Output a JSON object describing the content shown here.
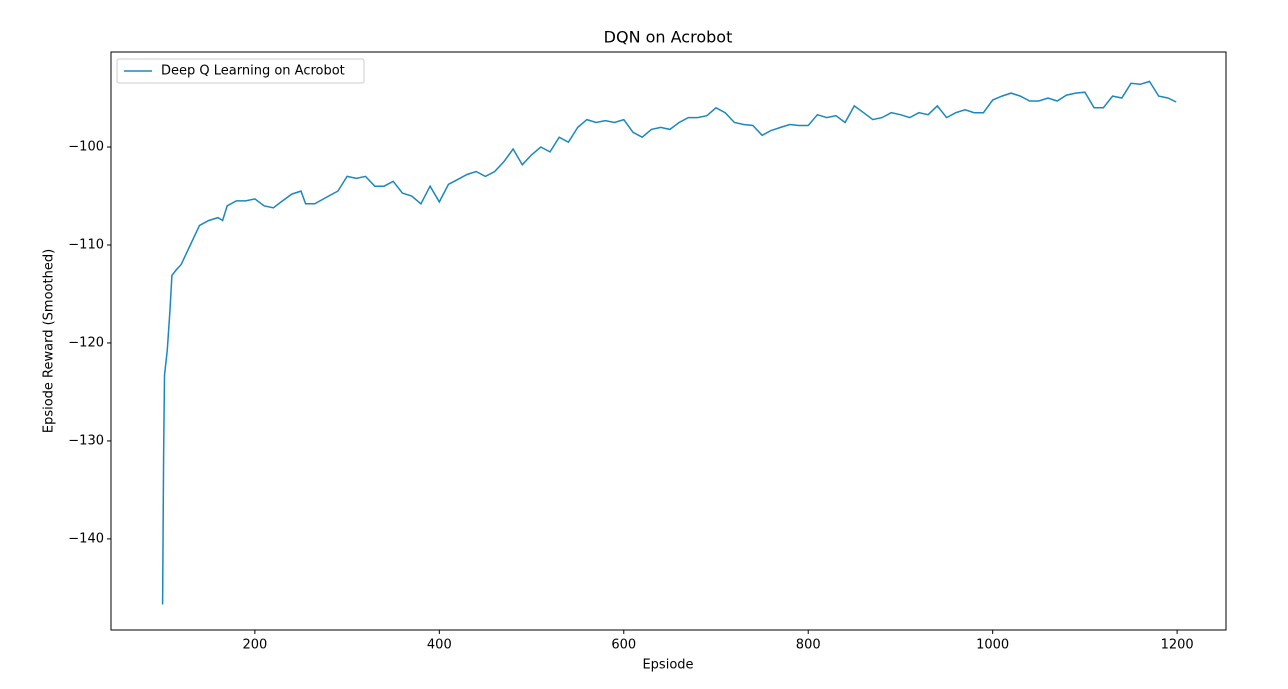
{
  "chart_data": {
    "type": "line",
    "title": "DQN on Acrobot",
    "x_label": "Epsiode",
    "y_label": "Epsiode Reward (Smoothed)",
    "x": [
      100,
      101,
      102,
      105,
      108,
      110,
      115,
      120,
      125,
      130,
      135,
      140,
      150,
      160,
      165,
      170,
      180,
      190,
      200,
      210,
      220,
      230,
      240,
      250,
      255,
      265,
      280,
      290,
      300,
      310,
      320,
      330,
      340,
      350,
      360,
      370,
      380,
      390,
      400,
      410,
      420,
      430,
      440,
      450,
      460,
      470,
      480,
      490,
      500,
      510,
      520,
      530,
      540,
      550,
      560,
      570,
      580,
      590,
      600,
      610,
      620,
      630,
      640,
      650,
      660,
      670,
      680,
      690,
      700,
      710,
      720,
      730,
      740,
      750,
      760,
      770,
      780,
      790,
      800,
      810,
      820,
      830,
      840,
      850,
      860,
      870,
      880,
      890,
      900,
      910,
      920,
      930,
      940,
      950,
      960,
      970,
      980,
      990,
      1000,
      1010,
      1020,
      1030,
      1040,
      1050,
      1060,
      1070,
      1080,
      1090,
      1100,
      1110,
      1120,
      1130,
      1140,
      1150,
      1160,
      1170,
      1180,
      1190,
      1199
    ],
    "series": [
      {
        "name": "Deep Q Learning on Acrobot",
        "color": "#1a88be",
        "values": [
          -146.7,
          -131.6,
          -123.3,
          -120.7,
          -116.6,
          -113.1,
          -112.5,
          -112,
          -111,
          -110,
          -109,
          -108,
          -107.5,
          -107.2,
          -107.5,
          -106,
          -105.5,
          -105.5,
          -105.3,
          -106,
          -106.2,
          -105.5,
          -104.8,
          -104.5,
          -105.8,
          -105.8,
          -105,
          -104.5,
          -103,
          -103.2,
          -103,
          -104,
          -104,
          -103.5,
          -104.7,
          -105,
          -105.8,
          -104,
          -105.6,
          -103.8,
          -103.3,
          -102.8,
          -102.5,
          -103,
          -102.5,
          -101.5,
          -100.2,
          -101.8,
          -100.8,
          -100,
          -100.5,
          -99,
          -99.5,
          -98,
          -97.2,
          -97.5,
          -97.3,
          -97.5,
          -97.2,
          -98.5,
          -99,
          -98.2,
          -98,
          -98.2,
          -97.5,
          -97,
          -97,
          -96.8,
          -96,
          -96.5,
          -97.5,
          -97.7,
          -97.8,
          -98.8,
          -98.3,
          -98,
          -97.7,
          -97.8,
          -97.8,
          -96.7,
          -97,
          -96.8,
          -97.5,
          -95.8,
          -96.5,
          -97.2,
          -97,
          -96.5,
          -96.7,
          -97,
          -96.5,
          -96.7,
          -95.8,
          -97,
          -96.5,
          -96.2,
          -96.5,
          -96.5,
          -95.2,
          -94.8,
          -94.5,
          -94.8,
          -95.3,
          -95.3,
          -95,
          -95.3,
          -94.7,
          -94.5,
          -94.4,
          -96,
          -96,
          -94.8,
          -95,
          -93.5,
          -93.6,
          -93.3,
          -94.8,
          -95,
          -95.4
        ]
      }
    ],
    "xlim": [
      44,
      1253
    ],
    "ylim": [
      -149.3,
      -90.3
    ],
    "xticks": [
      200,
      400,
      600,
      800,
      1000,
      1200
    ],
    "yticks": [
      {
        "value": -140,
        "label": "−140"
      },
      {
        "value": -130,
        "label": "−130"
      },
      {
        "value": -120,
        "label": "−120"
      },
      {
        "value": -110,
        "label": "−110"
      },
      {
        "value": -100,
        "label": "−100"
      }
    ],
    "legend": "upper left"
  }
}
